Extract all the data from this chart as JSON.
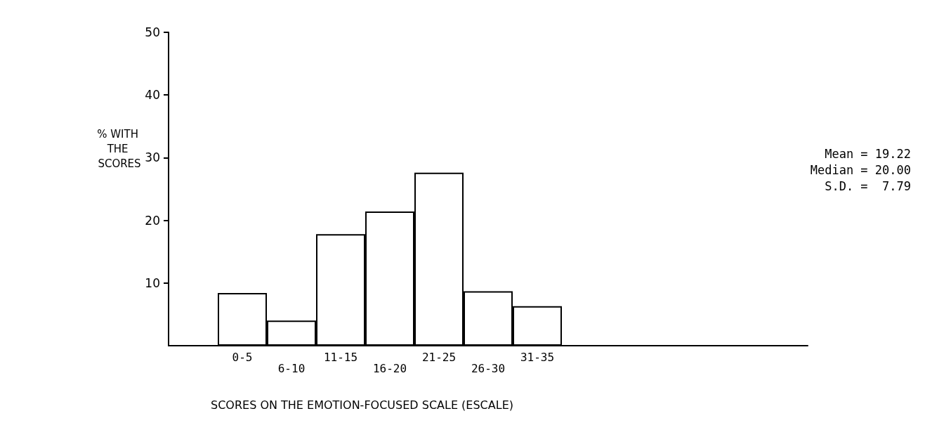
{
  "chart_data": {
    "type": "bar",
    "categories": [
      null,
      "0-5",
      "6-10",
      "11-15",
      "16-20",
      "21-25",
      "26-30",
      "31-35",
      null,
      null,
      null,
      null,
      null
    ],
    "values": [
      null,
      8.4,
      4.0,
      17.8,
      21.4,
      27.6,
      8.7,
      6.3,
      null,
      null,
      null,
      null,
      null
    ],
    "color": "#ffffff",
    "ylim": [
      0,
      50
    ],
    "yticks": [
      10,
      20,
      30,
      40,
      50
    ],
    "ylabel": "% WITH THE SCORES",
    "xlabel": "SCORES ON THE EMOTION-FOCUSED SCALE (ESCALE)",
    "annotations": [
      "Mean = 19.22",
      "Median = 20.00",
      "S.D. =  7.79"
    ],
    "grid": false
  }
}
